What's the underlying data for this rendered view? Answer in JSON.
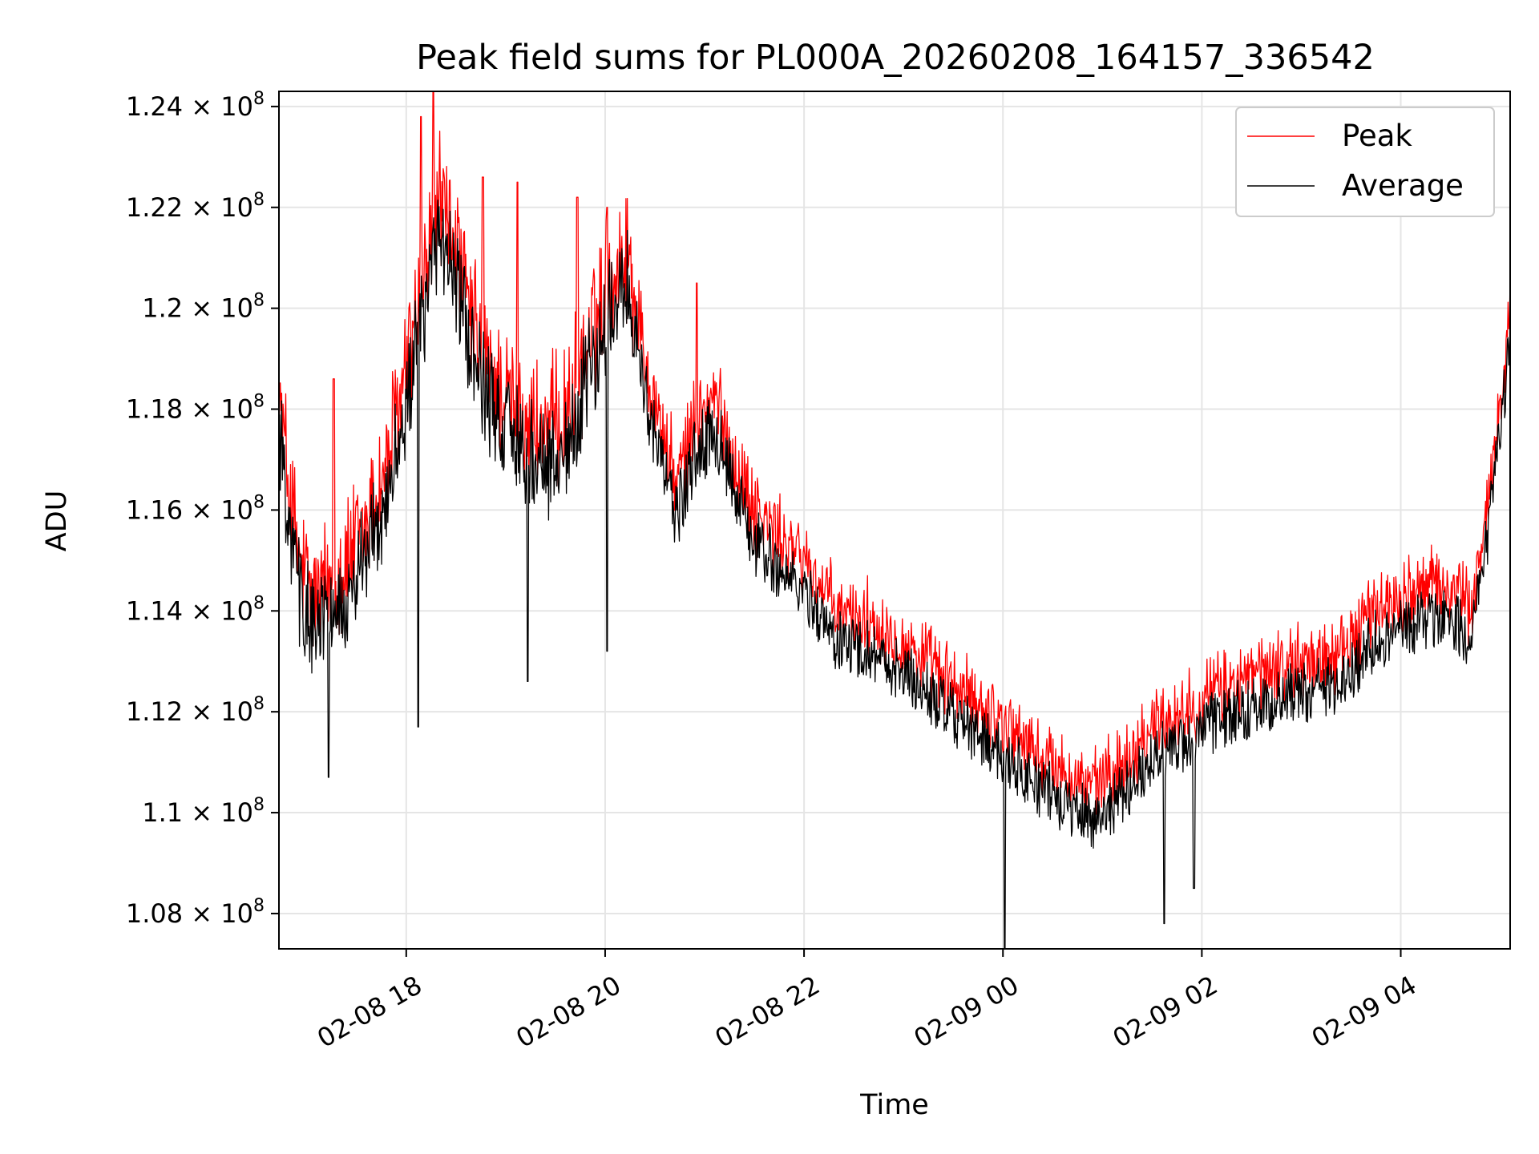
{
  "chart_data": {
    "type": "line",
    "title": "Peak field sums for PL000A_20260208_164157_336542",
    "xlabel": "Time",
    "ylabel": "ADU",
    "x_range_hours": [
      16.72,
      5.1
    ],
    "ylim": [
      107300000.0,
      124300000.0
    ],
    "grid": true,
    "legend_position": "top-right",
    "x_ticks": [
      {
        "hour_offset": 1.28,
        "label": "02-08 18"
      },
      {
        "hour_offset": 3.28,
        "label": "02-08 20"
      },
      {
        "hour_offset": 5.28,
        "label": "02-08 22"
      },
      {
        "hour_offset": 7.28,
        "label": "02-09 00"
      },
      {
        "hour_offset": 9.28,
        "label": "02-09 02"
      },
      {
        "hour_offset": 11.28,
        "label": "02-09 04"
      }
    ],
    "y_ticks": [
      {
        "value": 108000000.0,
        "mantissa": "1.08"
      },
      {
        "value": 110000000.0,
        "mantissa": "1.1"
      },
      {
        "value": 112000000.0,
        "mantissa": "1.12"
      },
      {
        "value": 114000000.0,
        "mantissa": "1.14"
      },
      {
        "value": 116000000.0,
        "mantissa": "1.16"
      },
      {
        "value": 118000000.0,
        "mantissa": "1.18"
      },
      {
        "value": 120000000.0,
        "mantissa": "1.2"
      },
      {
        "value": 122000000.0,
        "mantissa": "1.22"
      },
      {
        "value": 124000000.0,
        "mantissa": "1.24"
      }
    ],
    "y_tick_suffix": "× 10",
    "y_tick_exponent": "8",
    "x_span_hours": 12.38,
    "series": [
      {
        "name": "Peak",
        "color": "#ff0000",
        "anchors_hours": [
          0,
          0.1,
          0.2,
          0.35,
          0.5,
          0.7,
          0.9,
          1.1,
          1.3,
          1.5,
          1.6,
          1.75,
          1.9,
          2.1,
          2.3,
          2.5,
          2.7,
          2.9,
          3.1,
          3.3,
          3.5,
          3.7,
          3.9,
          4.0,
          4.2,
          4.4,
          4.6,
          4.8,
          5.0,
          5.3,
          5.6,
          6.0,
          6.4,
          6.8,
          7.0,
          7.3,
          7.6,
          7.9,
          8.2,
          8.5,
          8.8,
          9.1,
          9.5,
          9.9,
          10.3,
          10.7,
          11.0,
          11.3,
          11.6,
          11.8,
          12.0,
          12.2,
          12.38
        ],
        "anchors_values": [
          118300000.0,
          116500000.0,
          115000000.0,
          114200000.0,
          114500000.0,
          115000000.0,
          115800000.0,
          117000000.0,
          119000000.0,
          121000000.0,
          122200000.0,
          121500000.0,
          120000000.0,
          118800000.0,
          118200000.0,
          117800000.0,
          117500000.0,
          118000000.0,
          119200000.0,
          120500000.0,
          121200000.0,
          118800000.0,
          117200000.0,
          116500000.0,
          117800000.0,
          118200000.0,
          116800000.0,
          116000000.0,
          115500000.0,
          115000000.0,
          114000000.0,
          113800000.0,
          113200000.0,
          112500000.0,
          112200000.0,
          111800000.0,
          111200000.0,
          110800000.0,
          110500000.0,
          111000000.0,
          111800000.0,
          112000000.0,
          112500000.0,
          112800000.0,
          113000000.0,
          113200000.0,
          114000000.0,
          114300000.0,
          114500000.0,
          114500000.0,
          114000000.0,
          116800000.0,
          120000000.0
        ],
        "spikes": [
          [
            1.55,
            124300000.0
          ],
          [
            1.43,
            123800000.0
          ],
          [
            2.05,
            122600000.0
          ],
          [
            2.4,
            122500000.0
          ],
          [
            3.0,
            122200000.0
          ],
          [
            4.2,
            120500000.0
          ],
          [
            0.55,
            118600000.0
          ],
          [
            3.3,
            122000000.0
          ]
        ],
        "noise": 600000.0
      },
      {
        "name": "Average",
        "color": "#000000",
        "offset": -600000.0,
        "dips": [
          [
            0.5,
            110700000.0
          ],
          [
            1.4,
            111700000.0
          ],
          [
            2.5,
            112600000.0
          ],
          [
            7.3,
            107300000.0
          ],
          [
            8.9,
            107800000.0
          ],
          [
            3.3,
            113200000.0
          ],
          [
            9.2,
            108500000.0
          ]
        ],
        "noise": 700000.0
      }
    ]
  }
}
